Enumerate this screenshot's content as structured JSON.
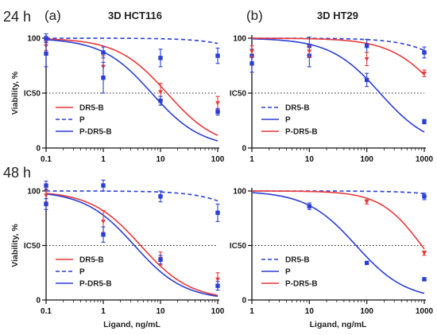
{
  "figure": {
    "row_labels": [
      "24 h",
      "48 h"
    ],
    "panel_letters": [
      "(a)",
      "(b)"
    ],
    "column_titles": [
      "3D HCT116",
      "3D HT29"
    ],
    "ylabel": "Viability, %",
    "xlabel": "Ligand, ng/mL",
    "ic50_label": "IC50",
    "colors": {
      "red": "#e8393a",
      "blue": "#2b3fd6",
      "dotted": "#222222"
    }
  },
  "chart_data": [
    {
      "type": "scatter",
      "title": "3D HCT116",
      "row_label": "24 h",
      "panel_letter": "(a)",
      "xscale": "log",
      "xlim": [
        0.1,
        100
      ],
      "ylim": [
        0,
        100
      ],
      "xticks": [
        "0.1",
        "1",
        "10",
        "100"
      ],
      "yticks": [
        "0",
        "50",
        "100"
      ],
      "ylabel": "Viability, %",
      "xlabel": "",
      "legend_position": "bottom-left",
      "ic50_line": 50,
      "series": [
        {
          "name": "DR5-B",
          "color": "#e8393a",
          "line": "solid",
          "x": [
            0.1,
            1,
            10,
            100
          ],
          "y": [
            93,
            74,
            51,
            41
          ],
          "err": [
            4,
            10,
            8,
            6
          ],
          "fit": {
            "ic50": 13,
            "hill": 1.0,
            "top": 100
          }
        },
        {
          "name": "P",
          "color": "#2b3fd6",
          "line": "dashed",
          "x": [
            0.1,
            1,
            10,
            100
          ],
          "y": [
            100,
            87,
            82,
            84
          ],
          "err": [
            4,
            5,
            8,
            7
          ],
          "fit": {
            "ic50": 2000,
            "hill": 1.0,
            "top": 100
          }
        },
        {
          "name": "P-DR5-B",
          "color": "#2b3fd6",
          "line": "solid",
          "x": [
            0.1,
            1,
            10,
            100
          ],
          "y": [
            86,
            64,
            43,
            33
          ],
          "err": [
            12,
            14,
            4,
            3
          ],
          "fit": {
            "ic50": 7,
            "hill": 1.0,
            "top": 100
          }
        }
      ]
    },
    {
      "type": "scatter",
      "title": "3D HT29",
      "row_label": "24 h",
      "panel_letter": "(b)",
      "xscale": "log",
      "xlim": [
        1,
        1000
      ],
      "ylim": [
        0,
        100
      ],
      "xticks": [
        "1",
        "10",
        "100",
        "1000"
      ],
      "yticks": [
        "0",
        "50",
        "100"
      ],
      "ylabel": "",
      "xlabel": "",
      "legend_position": "bottom-left",
      "ic50_line": 50,
      "series": [
        {
          "name": "DR5-B",
          "color": "#2b3fd6",
          "line": "dashed",
          "x": [
            1,
            10,
            100,
            1000
          ],
          "y": [
            84,
            93,
            93,
            87
          ],
          "err": [
            6,
            8,
            6,
            5
          ],
          "fit": {
            "ic50": 8000,
            "hill": 1.0,
            "top": 100
          }
        },
        {
          "name": "P",
          "color": "#2b3fd6",
          "line": "solid",
          "x": [
            1,
            10,
            100,
            1000
          ],
          "y": [
            77,
            84,
            62,
            24
          ],
          "err": [
            8,
            10,
            6,
            2
          ],
          "fit": {
            "ic50": 170,
            "hill": 1.0,
            "top": 100
          }
        },
        {
          "name": "P-DR5-B",
          "color": "#e8393a",
          "line": "solid",
          "x": [
            1,
            10,
            100,
            1000
          ],
          "y": [
            88,
            88,
            81,
            68
          ],
          "err": [
            5,
            5,
            6,
            3
          ],
          "fit": {
            "ic50": 2000,
            "hill": 1.0,
            "top": 100
          }
        }
      ]
    },
    {
      "type": "scatter",
      "title": "",
      "row_label": "48 h",
      "panel_letter": "",
      "xscale": "log",
      "xlim": [
        0.1,
        100
      ],
      "ylim": [
        0,
        100
      ],
      "xticks": [
        "0.1",
        "1",
        "10",
        "100"
      ],
      "yticks": [
        "0",
        "50",
        "100"
      ],
      "ylabel": "Viability, %",
      "xlabel": "Ligand, ng/mL",
      "legend_position": "bottom-left",
      "ic50_line": 50,
      "series": [
        {
          "name": "DR5-B",
          "color": "#e8393a",
          "line": "solid",
          "x": [
            0.1,
            1,
            10,
            100
          ],
          "y": [
            96,
            72,
            38,
            19
          ],
          "err": [
            6,
            10,
            6,
            6
          ],
          "fit": {
            "ic50": 4.5,
            "hill": 1.0,
            "top": 100
          }
        },
        {
          "name": "P",
          "color": "#2b3fd6",
          "line": "dashed",
          "x": [
            0.1,
            1,
            10,
            100
          ],
          "y": [
            105,
            105,
            95,
            80
          ],
          "err": [
            4,
            5,
            5,
            8
          ],
          "fit": {
            "ic50": 1000,
            "hill": 1.0,
            "top": 100
          }
        },
        {
          "name": "P-DR5-B",
          "color": "#2b3fd6",
          "line": "solid",
          "x": [
            0.1,
            1,
            10,
            100
          ],
          "y": [
            88,
            60,
            37,
            13
          ],
          "err": [
            5,
            7,
            4,
            4
          ],
          "fit": {
            "ic50": 3.5,
            "hill": 1.0,
            "top": 100
          }
        }
      ]
    },
    {
      "type": "scatter",
      "title": "",
      "row_label": "48 h",
      "panel_letter": "",
      "xscale": "log",
      "xlim": [
        1,
        1000
      ],
      "ylim": [
        0,
        100
      ],
      "xticks": [
        "1",
        "10",
        "100",
        "1000"
      ],
      "yticks": [
        "0",
        "50",
        "100"
      ],
      "ylabel": "",
      "xlabel": "Ligand, ng/mL",
      "legend_position": "bottom-left",
      "ic50_line": 50,
      "series": [
        {
          "name": "DR5-B",
          "color": "#2b3fd6",
          "line": "dashed",
          "x": [
            1000
          ],
          "y": [
            95
          ],
          "err": [
            3
          ],
          "fit": {
            "ic50": 40000,
            "hill": 1.0,
            "top": 100
          }
        },
        {
          "name": "P",
          "color": "#2b3fd6",
          "line": "solid",
          "x": [
            10,
            100,
            1000
          ],
          "y": [
            86,
            34,
            19
          ],
          "err": [
            3,
            1,
            1
          ],
          "fit": {
            "ic50": 65,
            "hill": 1.0,
            "top": 100
          }
        },
        {
          "name": "P-DR5-B",
          "color": "#e8393a",
          "line": "solid",
          "x": [
            100,
            1000
          ],
          "y": [
            90,
            43
          ],
          "err": [
            2,
            2
          ],
          "fit": {
            "ic50": 900,
            "hill": 1.2,
            "top": 100
          }
        }
      ]
    }
  ]
}
